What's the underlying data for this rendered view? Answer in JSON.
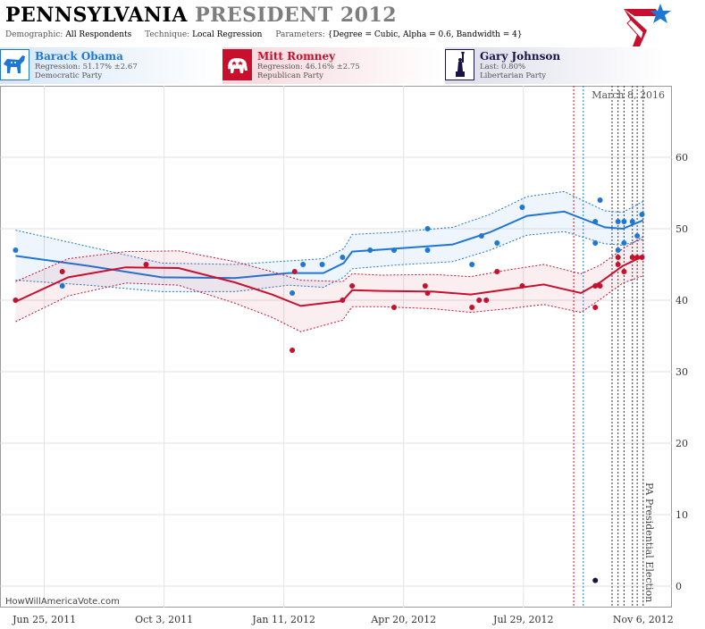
{
  "header": {
    "title_state": "PENNSYLVANIA",
    "title_race": "PRESIDENT 2012",
    "params": {
      "demographic_label": "Demographic:",
      "demographic_value": "All Respondents",
      "technique_label": "Technique:",
      "technique_value": "Local Regression",
      "parameters_label": "Parameters:",
      "parameters_value": "{Degree = Cubic, Alpha = 0.6, Bandwidth = 4}"
    }
  },
  "candidates": [
    {
      "name": "Barack Obama",
      "line1": "Regression: 51.17% ±2.67",
      "line2": "Democratic Party",
      "color": "#1f77d4",
      "icon": "donkey-icon"
    },
    {
      "name": "Mitt Romney",
      "line1": "Regression: 46.16% ±2.75",
      "line2": "Republican Party",
      "color": "#c8102e",
      "icon": "elephant-icon"
    },
    {
      "name": "Gary Johnson",
      "line1": "Last: 0.80%",
      "line2": "Libertarian Party",
      "color": "#1a1446",
      "icon": "liberty-icon"
    }
  ],
  "footer": {
    "url": "HowWillAmericaVote.com"
  },
  "chart_data": {
    "type": "scatter",
    "x_axis": {
      "tick_labels": [
        "Jun 25, 2011",
        "Oct 3, 2011",
        "Jan 11, 2012",
        "Apr 20, 2012",
        "Jul 29, 2012",
        "Nov 6, 2012"
      ],
      "tick_dates": [
        "2011-06-25",
        "2011-10-03",
        "2012-01-11",
        "2012-04-20",
        "2012-07-29",
        "2012-11-06"
      ],
      "range": [
        "2011-05-19",
        "2012-11-30"
      ]
    },
    "y_axis": {
      "range": [
        -3,
        70
      ],
      "ticks": [
        0,
        10,
        20,
        30,
        40,
        50,
        60
      ]
    },
    "grid": true,
    "annotations": {
      "date_label": "March 8, 2016",
      "event_label": "PA Presidential Election",
      "event_date": "2012-11-06"
    },
    "vlines_red": [
      "2012-09-09"
    ],
    "vlines_blue": [
      "2012-09-17"
    ],
    "vlines_dark": [
      "2012-10-11",
      "2012-10-16",
      "2012-10-21",
      "2012-10-28",
      "2012-11-01"
    ],
    "series": [
      {
        "name": "Barack Obama",
        "color": "#1f77d4",
        "points": [
          [
            "2011-06-01",
            47
          ],
          [
            "2011-07-10",
            42
          ],
          [
            "2012-01-18",
            41
          ],
          [
            "2012-01-27",
            45
          ],
          [
            "2012-02-29",
            46
          ],
          [
            "2012-02-12",
            45
          ],
          [
            "2012-03-23",
            47
          ],
          [
            "2012-04-12",
            47
          ],
          [
            "2012-05-10",
            50
          ],
          [
            "2012-05-10",
            47
          ],
          [
            "2012-06-16",
            45
          ],
          [
            "2012-06-24",
            49
          ],
          [
            "2012-07-07",
            48
          ],
          [
            "2012-07-28",
            53
          ],
          [
            "2012-09-27",
            51
          ],
          [
            "2012-09-27",
            48
          ],
          [
            "2012-10-01",
            54
          ],
          [
            "2012-10-16",
            51
          ],
          [
            "2012-10-16",
            47
          ],
          [
            "2012-10-21",
            48
          ],
          [
            "2012-10-21",
            51
          ],
          [
            "2012-10-28",
            51
          ],
          [
            "2012-11-01",
            49
          ],
          [
            "2012-11-05",
            52
          ]
        ],
        "trend": [
          [
            "2011-06-01",
            46.2
          ],
          [
            "2011-08-01",
            44.8
          ],
          [
            "2011-10-01",
            43.2
          ],
          [
            "2011-12-01",
            43.1
          ],
          [
            "2012-01-15",
            43.8
          ],
          [
            "2012-02-13",
            43.8
          ],
          [
            "2012-03-01",
            45.2
          ],
          [
            "2012-03-08",
            46.8
          ],
          [
            "2012-04-12",
            47.2
          ],
          [
            "2012-05-31",
            47.8
          ],
          [
            "2012-07-01",
            49.5
          ],
          [
            "2012-08-01",
            51.8
          ],
          [
            "2012-09-01",
            52.4
          ],
          [
            "2012-10-05",
            50.2
          ],
          [
            "2012-10-20",
            50.0
          ],
          [
            "2012-11-06",
            51.17
          ]
        ],
        "band_upper": [
          [
            "2011-06-01",
            49.8
          ],
          [
            "2011-08-01",
            47.5
          ],
          [
            "2011-10-01",
            45.2
          ],
          [
            "2011-12-01",
            45.0
          ],
          [
            "2012-01-15",
            45.5
          ],
          [
            "2012-02-13",
            45.8
          ],
          [
            "2012-03-01",
            47.2
          ],
          [
            "2012-03-08",
            49.2
          ],
          [
            "2012-04-12",
            49.5
          ],
          [
            "2012-05-31",
            50.2
          ],
          [
            "2012-07-01",
            52.0
          ],
          [
            "2012-08-01",
            54.5
          ],
          [
            "2012-09-01",
            55.2
          ],
          [
            "2012-10-05",
            52.5
          ],
          [
            "2012-10-20",
            52.3
          ],
          [
            "2012-11-06",
            53.84
          ]
        ],
        "band_lower": [
          [
            "2011-06-01",
            42.8
          ],
          [
            "2011-08-01",
            42.1
          ],
          [
            "2011-10-01",
            41.2
          ],
          [
            "2011-12-01",
            41.2
          ],
          [
            "2012-01-15",
            42.1
          ],
          [
            "2012-02-13",
            41.8
          ],
          [
            "2012-03-01",
            43.2
          ],
          [
            "2012-03-08",
            44.4
          ],
          [
            "2012-04-12",
            44.9
          ],
          [
            "2012-05-31",
            45.4
          ],
          [
            "2012-07-01",
            47.0
          ],
          [
            "2012-08-01",
            49.1
          ],
          [
            "2012-09-01",
            49.6
          ],
          [
            "2012-10-05",
            47.9
          ],
          [
            "2012-10-20",
            47.7
          ],
          [
            "2012-11-06",
            48.5
          ]
        ]
      },
      {
        "name": "Mitt Romney",
        "color": "#c8102e",
        "points": [
          [
            "2011-06-01",
            40
          ],
          [
            "2011-07-10",
            44
          ],
          [
            "2011-09-18",
            45
          ],
          [
            "2012-01-18",
            33
          ],
          [
            "2012-01-20",
            44
          ],
          [
            "2012-02-29",
            40
          ],
          [
            "2012-03-08",
            42
          ],
          [
            "2012-04-12",
            39
          ],
          [
            "2012-05-08",
            42
          ],
          [
            "2012-05-10",
            41
          ],
          [
            "2012-06-16",
            39
          ],
          [
            "2012-06-22",
            40
          ],
          [
            "2012-06-28",
            40
          ],
          [
            "2012-07-07",
            44
          ],
          [
            "2012-07-28",
            42
          ],
          [
            "2012-09-27",
            42
          ],
          [
            "2012-09-27",
            39
          ],
          [
            "2012-10-01",
            42
          ],
          [
            "2012-10-16",
            45
          ],
          [
            "2012-10-16",
            46
          ],
          [
            "2012-10-21",
            44
          ],
          [
            "2012-10-28",
            46
          ],
          [
            "2012-11-01",
            46
          ],
          [
            "2012-11-05",
            46
          ]
        ],
        "trend": [
          [
            "2011-06-01",
            39.8
          ],
          [
            "2011-07-15",
            43.2
          ],
          [
            "2011-09-01",
            44.6
          ],
          [
            "2011-10-15",
            44.5
          ],
          [
            "2011-12-01",
            42.5
          ],
          [
            "2012-01-01",
            40.8
          ],
          [
            "2012-01-25",
            39.2
          ],
          [
            "2012-02-29",
            39.9
          ],
          [
            "2012-03-08",
            41.4
          ],
          [
            "2012-04-01",
            41.3
          ],
          [
            "2012-05-15",
            41.2
          ],
          [
            "2012-06-15",
            40.8
          ],
          [
            "2012-07-15",
            41.5
          ],
          [
            "2012-08-15",
            42.2
          ],
          [
            "2012-09-15",
            41.0
          ],
          [
            "2012-10-01",
            42.5
          ],
          [
            "2012-10-20",
            44.8
          ],
          [
            "2012-11-06",
            46.16
          ]
        ],
        "band_upper": [
          [
            "2011-06-01",
            42.6
          ],
          [
            "2011-07-15",
            45.8
          ],
          [
            "2011-09-01",
            46.8
          ],
          [
            "2011-10-15",
            46.9
          ],
          [
            "2011-12-01",
            45.4
          ],
          [
            "2012-01-01",
            44.0
          ],
          [
            "2012-01-25",
            42.8
          ],
          [
            "2012-02-29",
            42.6
          ],
          [
            "2012-03-08",
            43.7
          ],
          [
            "2012-04-01",
            43.5
          ],
          [
            "2012-05-15",
            43.6
          ],
          [
            "2012-06-15",
            43.3
          ],
          [
            "2012-07-15",
            44.2
          ],
          [
            "2012-08-15",
            45.0
          ],
          [
            "2012-09-15",
            43.7
          ],
          [
            "2012-10-01",
            44.9
          ],
          [
            "2012-10-20",
            47.2
          ],
          [
            "2012-11-06",
            48.91
          ]
        ],
        "band_lower": [
          [
            "2011-06-01",
            37.0
          ],
          [
            "2011-07-15",
            40.6
          ],
          [
            "2011-09-01",
            42.4
          ],
          [
            "2011-10-15",
            42.1
          ],
          [
            "2011-12-01",
            39.6
          ],
          [
            "2012-01-01",
            37.6
          ],
          [
            "2012-01-25",
            35.6
          ],
          [
            "2012-02-29",
            37.2
          ],
          [
            "2012-03-08",
            39.1
          ],
          [
            "2012-04-01",
            39.1
          ],
          [
            "2012-05-15",
            38.8
          ],
          [
            "2012-06-15",
            38.3
          ],
          [
            "2012-07-15",
            38.8
          ],
          [
            "2012-08-15",
            39.4
          ],
          [
            "2012-09-15",
            38.3
          ],
          [
            "2012-10-01",
            40.1
          ],
          [
            "2012-10-20",
            42.4
          ],
          [
            "2012-11-06",
            43.41
          ]
        ]
      },
      {
        "name": "Gary Johnson",
        "color": "#1a1446",
        "points": [
          [
            "2012-09-27",
            0.8
          ]
        ]
      }
    ]
  }
}
